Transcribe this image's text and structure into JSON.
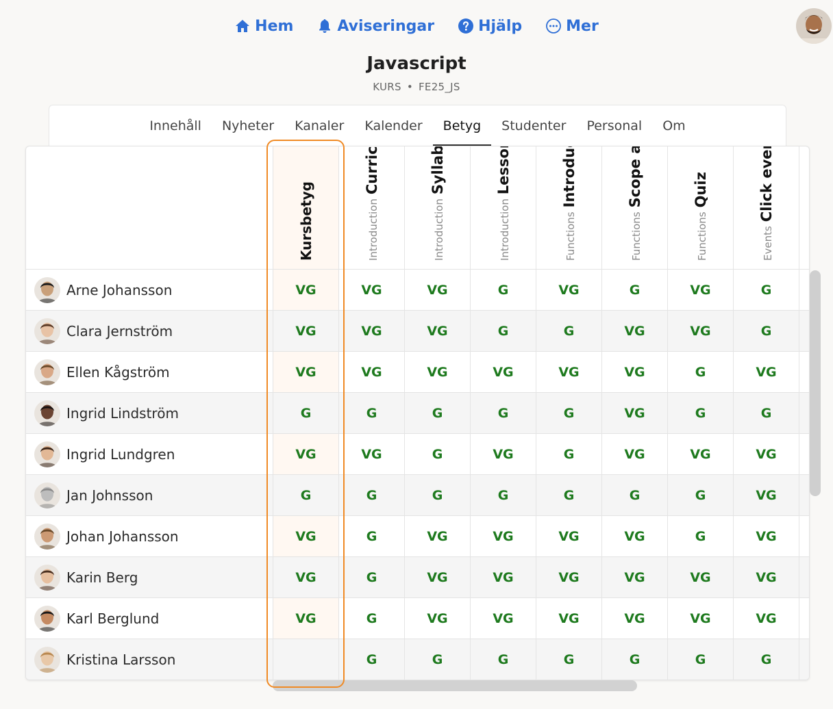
{
  "nav": {
    "items": [
      {
        "label": "Hem",
        "icon": "home-icon"
      },
      {
        "label": "Aviseringar",
        "icon": "bell-icon"
      },
      {
        "label": "Hjälp",
        "icon": "help-icon"
      },
      {
        "label": "Mer",
        "icon": "more-icon"
      }
    ],
    "accent": "#2f6fd6"
  },
  "course": {
    "title": "Javascript",
    "type": "KURS",
    "code": "FE25_JS"
  },
  "tabs": [
    {
      "label": "Innehåll",
      "active": false
    },
    {
      "label": "Nyheter",
      "active": false
    },
    {
      "label": "Kanaler",
      "active": false
    },
    {
      "label": "Kalender",
      "active": false
    },
    {
      "label": "Betyg",
      "active": true
    },
    {
      "label": "Studenter",
      "active": false
    },
    {
      "label": "Personal",
      "active": false
    },
    {
      "label": "Om",
      "active": false
    }
  ],
  "columns": [
    {
      "category": "",
      "name": "Kursbetyg"
    },
    {
      "category": "Introduction",
      "name": "Curriculum"
    },
    {
      "category": "Introduction",
      "name": "Syllabus"
    },
    {
      "category": "Introduction",
      "name": "Lessons, quizz..."
    },
    {
      "category": "Functions",
      "name": "Introduction"
    },
    {
      "category": "Functions",
      "name": "Scope and Clo..."
    },
    {
      "category": "Functions",
      "name": "Quiz"
    },
    {
      "category": "Events",
      "name": "Click events"
    }
  ],
  "students": [
    {
      "name": "Arne Johansson",
      "grades": [
        "VG",
        "VG",
        "VG",
        "G",
        "VG",
        "G",
        "VG",
        "G"
      ]
    },
    {
      "name": "Clara Jernström",
      "grades": [
        "VG",
        "VG",
        "VG",
        "G",
        "G",
        "VG",
        "VG",
        "G"
      ]
    },
    {
      "name": "Ellen Kågström",
      "grades": [
        "VG",
        "VG",
        "VG",
        "VG",
        "VG",
        "VG",
        "G",
        "VG"
      ]
    },
    {
      "name": "Ingrid Lindström",
      "grades": [
        "G",
        "G",
        "G",
        "G",
        "G",
        "VG",
        "G",
        "G"
      ]
    },
    {
      "name": "Ingrid Lundgren",
      "grades": [
        "VG",
        "VG",
        "G",
        "VG",
        "G",
        "VG",
        "VG",
        "VG"
      ]
    },
    {
      "name": "Jan Johnsson",
      "grades": [
        "G",
        "G",
        "G",
        "G",
        "G",
        "G",
        "G",
        "VG"
      ]
    },
    {
      "name": "Johan Johansson",
      "grades": [
        "VG",
        "G",
        "VG",
        "VG",
        "VG",
        "VG",
        "G",
        "VG"
      ]
    },
    {
      "name": "Karin Berg",
      "grades": [
        "VG",
        "G",
        "VG",
        "VG",
        "VG",
        "VG",
        "VG",
        "VG"
      ]
    },
    {
      "name": "Karl Berglund",
      "grades": [
        "VG",
        "G",
        "VG",
        "VG",
        "VG",
        "VG",
        "VG",
        "VG"
      ]
    },
    {
      "name": "Kristina Larsson",
      "grades": [
        "",
        "G",
        "G",
        "G",
        "G",
        "G",
        "G",
        "G"
      ]
    }
  ],
  "grade_color": "#1e7a1e",
  "highlight_color": "#f08a24"
}
